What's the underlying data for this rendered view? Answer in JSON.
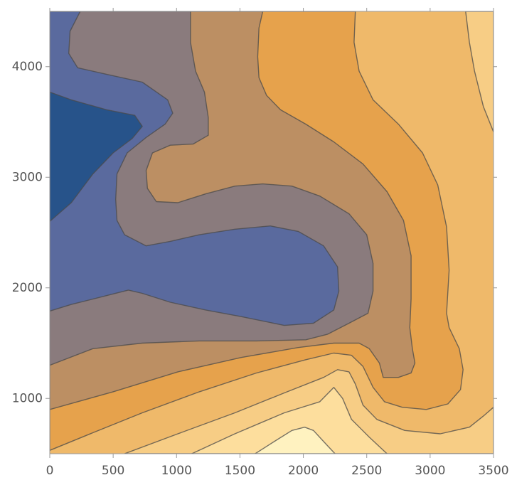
{
  "chart_data": {
    "type": "contour",
    "xlim": [
      0,
      3500
    ],
    "ylim": [
      500,
      4500
    ],
    "xticks": [
      0,
      500,
      1000,
      1500,
      2000,
      2500,
      3000,
      3500
    ],
    "yticks": [
      1000,
      2000,
      3000,
      4000
    ],
    "background_color": "#EFB96A",
    "regions": [
      {
        "color": "#E6A24C",
        "x": [
          0,
          2410,
          2400,
          2440,
          2550,
          2750,
          2940,
          3060,
          3130,
          3150,
          3130,
          3150,
          3230,
          3260,
          3240,
          3140,
          2970,
          2780,
          2640,
          2550,
          2470,
          2380,
          2240,
          2020,
          1630,
          1180,
          730,
          340,
          0
        ],
        "y": [
          4500,
          4500,
          4220,
          3960,
          3700,
          3480,
          3220,
          2930,
          2550,
          2160,
          1770,
          1640,
          1450,
          1260,
          1080,
          950,
          900,
          920,
          970,
          1100,
          1290,
          1390,
          1410,
          1350,
          1230,
          1060,
          870,
          690,
          530
        ]
      },
      {
        "color": "#BC8F63",
        "x": [
          0,
          1680,
          1650,
          1640,
          1650,
          1710,
          1820,
          2020,
          2240,
          2470,
          2660,
          2790,
          2850,
          2850,
          2840,
          2860,
          2880,
          2850,
          2750,
          2630,
          2600,
          2520,
          2440,
          2240,
          1960,
          1510,
          1010,
          500,
          0
        ],
        "y": [
          4500,
          4500,
          4350,
          4090,
          3900,
          3740,
          3610,
          3480,
          3320,
          3120,
          2870,
          2610,
          2290,
          1900,
          1640,
          1450,
          1320,
          1230,
          1190,
          1190,
          1320,
          1450,
          1500,
          1500,
          1460,
          1370,
          1240,
          1060,
          900
        ]
      },
      {
        "color": "#8A7B7D",
        "x": [
          0,
          1110,
          1110,
          1150,
          1220,
          1250,
          1250,
          1130,
          950,
          810,
          760,
          770,
          840,
          1010,
          1230,
          1460,
          1680,
          1910,
          2130,
          2360,
          2500,
          2550,
          2550,
          2510,
          2360,
          2190,
          2020,
          1630,
          1180,
          730,
          340,
          0
        ],
        "y": [
          4500,
          4500,
          4220,
          3960,
          3770,
          3540,
          3380,
          3300,
          3290,
          3220,
          3060,
          2900,
          2780,
          2770,
          2850,
          2920,
          2940,
          2920,
          2830,
          2670,
          2480,
          2220,
          1970,
          1770,
          1680,
          1580,
          1530,
          1520,
          1520,
          1500,
          1450,
          1300
        ]
      },
      {
        "color": "#5A6A9E",
        "x": [
          0,
          240,
          160,
          150,
          220,
          450,
          730,
          930,
          970,
          910,
          760,
          610,
          530,
          520,
          530,
          590,
          760,
          950,
          1180,
          1460,
          1740,
          1960,
          2160,
          2270,
          2280,
          2240,
          2080,
          1850,
          1510,
          1230,
          950,
          730,
          620,
          450,
          170,
          0
        ],
        "y": [
          4500,
          4500,
          4320,
          4120,
          3990,
          3930,
          3860,
          3700,
          3580,
          3480,
          3360,
          3220,
          3030,
          2800,
          2610,
          2480,
          2380,
          2420,
          2480,
          2530,
          2560,
          2510,
          2380,
          2190,
          1970,
          1800,
          1680,
          1660,
          1740,
          1800,
          1870,
          1950,
          1980,
          1930,
          1850,
          1790
        ]
      },
      {
        "color": "#27538A",
        "x": [
          0,
          170,
          450,
          670,
          730,
          650,
          500,
          340,
          170,
          0
        ],
        "y": [
          3770,
          3700,
          3610,
          3560,
          3460,
          3350,
          3220,
          3030,
          2770,
          2600
        ]
      },
      {
        "color": "#F7CD85",
        "x": [
          3280,
          3500,
          3500,
          3420,
          3350,
          3310
        ],
        "y": [
          4500,
          4500,
          3410,
          3640,
          3960,
          4220
        ]
      },
      {
        "color": "#F7CD85",
        "x": [
          590,
          1010,
          1460,
          1850,
          2160,
          2270,
          2360,
          2410,
          2470,
          2580,
          2800,
          3080,
          3310,
          3420,
          3500,
          3500
        ],
        "y": [
          500,
          680,
          870,
          1050,
          1190,
          1260,
          1240,
          1130,
          940,
          810,
          710,
          680,
          740,
          840,
          920,
          500
        ]
      },
      {
        "color": "#FDDE9D",
        "x": [
          1120,
          1460,
          1850,
          2130,
          2240,
          2310,
          2380,
          2520,
          2660
        ],
        "y": [
          500,
          680,
          870,
          970,
          1100,
          1000,
          810,
          650,
          500
        ]
      },
      {
        "color": "#FFF2C0",
        "x": [
          1620,
          1770,
          1910,
          2010,
          2080,
          2160,
          2250
        ],
        "y": [
          500,
          610,
          710,
          740,
          710,
          610,
          500
        ]
      }
    ]
  }
}
